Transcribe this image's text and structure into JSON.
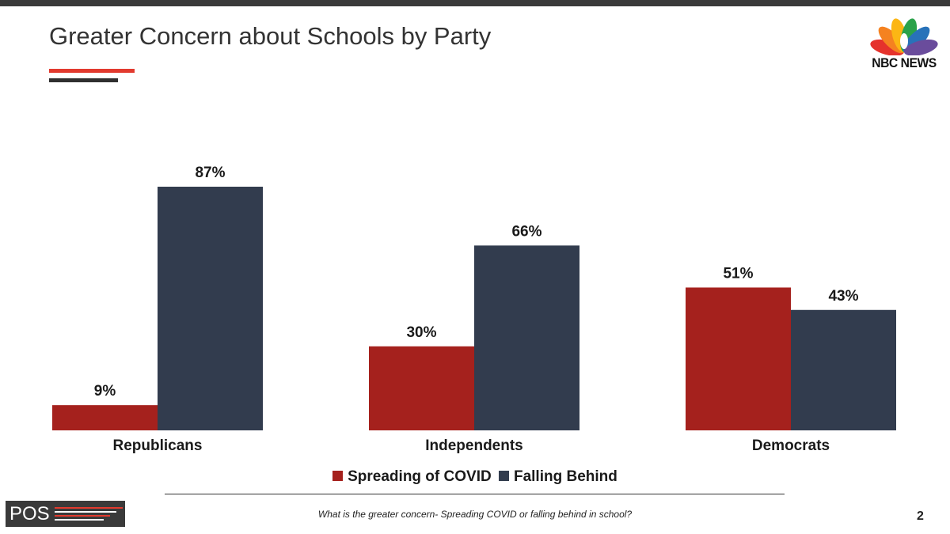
{
  "title": "Greater Concern about Schools by Party",
  "brand": {
    "name": "NBC NEWS"
  },
  "footer": {
    "question": "What is the greater concern- Spreading COVID or falling behind in school?",
    "page_number": "2",
    "pos_logo_text": "POS"
  },
  "colors": {
    "accent": "#e23a2e",
    "series_red": "#a5211d",
    "series_navy": "#323c4e"
  },
  "chart_data": {
    "type": "bar",
    "title": "Greater Concern about Schools by Party",
    "categories": [
      "Republicans",
      "Independents",
      "Democrats"
    ],
    "series": [
      {
        "name": "Spreading of COVID",
        "values": [
          9,
          30,
          51
        ],
        "labels": [
          "9%",
          "30%",
          "51%"
        ],
        "color": "#a5211d"
      },
      {
        "name": "Falling Behind",
        "values": [
          87,
          66,
          43
        ],
        "labels": [
          "87%",
          "66%",
          "43%"
        ],
        "color": "#323c4e"
      }
    ],
    "ylim": [
      0,
      100
    ],
    "xlabel": "",
    "ylabel": "",
    "grid": false,
    "legend_position": "bottom"
  }
}
